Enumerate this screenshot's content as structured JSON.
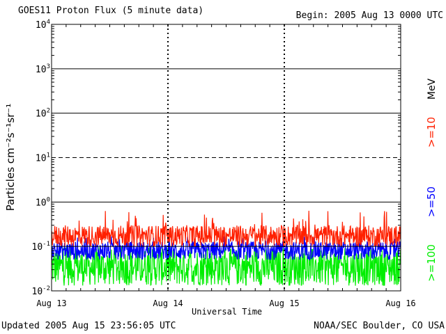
{
  "chart_data": {
    "type": "line",
    "title": "GOES11 Proton Flux (5 minute data)",
    "begin_label": "Begin: 2005 Aug 13 0000 UTC",
    "xlabel": "Universal Time",
    "ylabel": "Particles cm⁻²s⁻¹sr⁻¹",
    "y_scale": "log",
    "ylim": [
      0.01,
      10000
    ],
    "y_ticks": [
      {
        "base": "10",
        "exp": "4",
        "value": 10000
      },
      {
        "base": "10",
        "exp": "3",
        "value": 1000
      },
      {
        "base": "10",
        "exp": "2",
        "value": 100
      },
      {
        "base": "10",
        "exp": "1",
        "value": 10
      },
      {
        "base": "10",
        "exp": "0",
        "value": 1
      },
      {
        "base": "10",
        "exp": "-1",
        "value": 0.1
      },
      {
        "base": "10",
        "exp": "-2",
        "value": 0.01
      }
    ],
    "x_ticks": [
      "Aug 13",
      "Aug 14",
      "Aug 15",
      "Aug 16"
    ],
    "xlim_days": [
      0,
      3
    ],
    "series": [
      {
        "name": ">=10",
        "color": "#ff2000",
        "typical_range": [
          0.1,
          0.3
        ],
        "peak": 0.65
      },
      {
        "name": ">=50",
        "color": "#0000ff",
        "typical_range": [
          0.05,
          0.13
        ],
        "peak": 0.17
      },
      {
        "name": ">=100",
        "color": "#00ee00",
        "typical_range": [
          0.013,
          0.09
        ],
        "peak": 0.1
      }
    ],
    "legend_unit": "MeV",
    "threshold_lines": [
      {
        "value": 10,
        "style": "dashed"
      },
      {
        "value": 0.1,
        "style": "solid"
      }
    ]
  },
  "footer": {
    "updated": "Updated 2005 Aug 15 23:56:05 UTC",
    "source": "NOAA/SEC Boulder, CO USA"
  }
}
